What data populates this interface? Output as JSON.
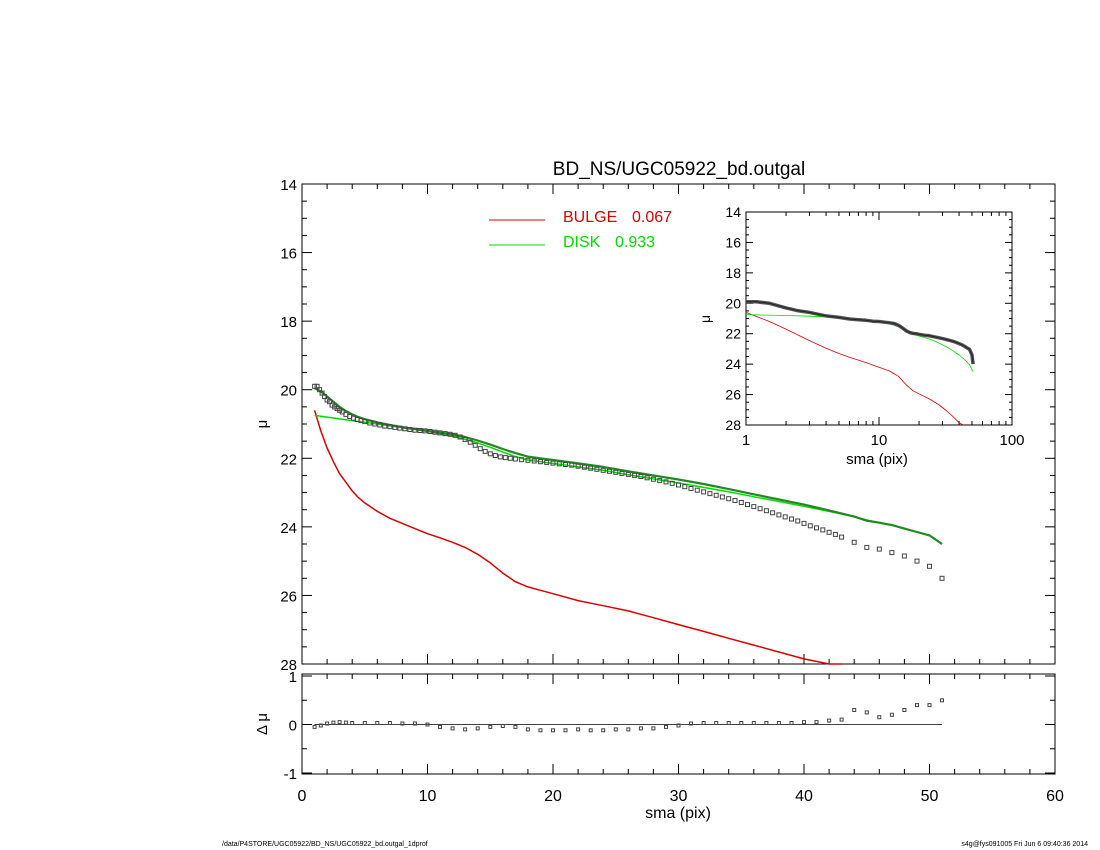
{
  "title": "BD_NS/UGC05922_bd.outgal",
  "footer": {
    "path": "/data/P4STORE/UGC05922/BD_NS/UGC05922_bd.outgal_1dprof",
    "stamp": "s4g@fys091005  Fri Jun  6 09:40:36 2014"
  },
  "colors": {
    "bulge": "#dd0000",
    "disk": "#00dd00",
    "data": "#444444",
    "axis": "#000000"
  },
  "chart_data": [
    {
      "id": "main",
      "type": "scatter",
      "xlabel": "",
      "ylabel": "μ",
      "xlim": [
        0,
        60
      ],
      "ylim": [
        28,
        14
      ],
      "yticks": [
        "14",
        "16",
        "18",
        "20",
        "22",
        "24",
        "26",
        "28"
      ],
      "legend": {
        "placement": "top-center",
        "entries": [
          {
            "name": "BULGE",
            "value": "0.067",
            "color": "#dd0000"
          },
          {
            "name": "DISK",
            "value": "0.933",
            "color": "#00dd00"
          }
        ]
      },
      "series": [
        {
          "name": "data",
          "marker": "square",
          "x": [
            1.0,
            1.2,
            1.4,
            1.6,
            1.8,
            2.0,
            2.2,
            2.4,
            2.6,
            2.8,
            3.0,
            3.2,
            3.5,
            3.8,
            4.1,
            4.4,
            4.7,
            5.0,
            5.4,
            5.8,
            6.2,
            6.6,
            7.0,
            7.4,
            7.8,
            8.2,
            8.6,
            9.0,
            9.4,
            9.8,
            10.2,
            10.6,
            11.0,
            11.4,
            11.8,
            12.2,
            12.6,
            13.0,
            13.4,
            13.8,
            14.2,
            14.6,
            15.0,
            15.4,
            15.8,
            16.2,
            16.6,
            17.0,
            17.5,
            18.0,
            18.5,
            19.0,
            19.5,
            20.0,
            20.5,
            21.0,
            21.5,
            22.0,
            22.5,
            23.0,
            23.5,
            24.0,
            24.5,
            25.0,
            25.5,
            26.0,
            26.5,
            27.0,
            27.5,
            28.0,
            28.5,
            29.0,
            29.5,
            30.0,
            30.5,
            31.0,
            31.5,
            32.0,
            32.5,
            33.0,
            33.5,
            34.0,
            34.5,
            35.0,
            35.5,
            36.0,
            36.5,
            37.0,
            37.5,
            38.0,
            38.5,
            39.0,
            39.5,
            40.0,
            40.5,
            41.0,
            41.5,
            42.0,
            42.5,
            43.0,
            44.0,
            45.0,
            46.0,
            47.0,
            48.0,
            49.0,
            50.0,
            51.0
          ],
          "y": [
            19.9,
            19.9,
            20.0,
            20.1,
            20.2,
            20.3,
            20.35,
            20.45,
            20.5,
            20.55,
            20.6,
            20.65,
            20.72,
            20.78,
            20.83,
            20.87,
            20.9,
            20.93,
            20.97,
            21.0,
            21.03,
            21.06,
            21.08,
            21.1,
            21.12,
            21.14,
            21.16,
            21.18,
            21.19,
            21.2,
            21.22,
            21.24,
            21.26,
            21.28,
            21.3,
            21.33,
            21.38,
            21.45,
            21.53,
            21.62,
            21.72,
            21.8,
            21.87,
            21.92,
            21.96,
            21.98,
            22.0,
            22.02,
            22.04,
            22.06,
            22.08,
            22.1,
            22.12,
            22.14,
            22.16,
            22.18,
            22.2,
            22.23,
            22.26,
            22.29,
            22.32,
            22.35,
            22.38,
            22.41,
            22.44,
            22.47,
            22.5,
            22.53,
            22.57,
            22.61,
            22.65,
            22.69,
            22.73,
            22.78,
            22.83,
            22.88,
            22.93,
            22.98,
            23.03,
            23.08,
            23.13,
            23.18,
            23.23,
            23.29,
            23.35,
            23.41,
            23.47,
            23.53,
            23.59,
            23.65,
            23.71,
            23.77,
            23.83,
            23.9,
            23.97,
            24.03,
            24.09,
            24.16,
            24.22,
            24.3,
            24.45,
            24.6,
            24.65,
            24.75,
            24.85,
            25.0,
            25.15,
            25.5
          ]
        },
        {
          "name": "model",
          "x": [
            1.0,
            1.5,
            2.0,
            2.5,
            3.0,
            3.5,
            4.0,
            4.5,
            5.0,
            6.0,
            7.0,
            8.0,
            9.0,
            10.0,
            11.0,
            12.0,
            13.0,
            14.0,
            15.0,
            16.0,
            17.0,
            18.0,
            19.0,
            20.0,
            22.0,
            24.0,
            26.0,
            28.0,
            30.0,
            32.0,
            34.0,
            36.0,
            38.0,
            40.0,
            42.0,
            44.0,
            45.0,
            46.0,
            47.0,
            48.0,
            49.0,
            50.0,
            51.0
          ],
          "y": [
            19.95,
            20.05,
            20.2,
            20.35,
            20.5,
            20.62,
            20.72,
            20.8,
            20.86,
            20.95,
            21.03,
            21.1,
            21.15,
            21.2,
            21.25,
            21.3,
            21.38,
            21.48,
            21.6,
            21.73,
            21.85,
            21.95,
            22.0,
            22.05,
            22.15,
            22.25,
            22.38,
            22.5,
            22.62,
            22.75,
            22.9,
            23.05,
            23.2,
            23.35,
            23.52,
            23.7,
            23.82,
            23.88,
            23.95,
            24.05,
            24.15,
            24.25,
            24.5
          ]
        },
        {
          "name": "BULGE",
          "x": [
            1.0,
            1.5,
            2.0,
            2.5,
            3.0,
            3.5,
            4.0,
            4.5,
            5.0,
            6.0,
            7.0,
            8.0,
            9.0,
            10.0,
            11.0,
            12.0,
            13.0,
            14.0,
            15.0,
            16.0,
            17.0,
            18.0,
            19.0,
            20.0,
            22.0,
            24.0,
            26.0,
            28.0,
            30.0,
            32.0,
            34.0,
            36.0,
            38.0,
            40.0,
            42.0,
            43.0
          ],
          "y": [
            20.6,
            21.2,
            21.7,
            22.1,
            22.45,
            22.7,
            22.95,
            23.15,
            23.3,
            23.55,
            23.75,
            23.9,
            24.05,
            24.2,
            24.32,
            24.45,
            24.6,
            24.8,
            25.05,
            25.35,
            25.6,
            25.75,
            25.85,
            25.95,
            26.15,
            26.3,
            26.45,
            26.65,
            26.85,
            27.05,
            27.25,
            27.45,
            27.65,
            27.85,
            28.0,
            28.0
          ]
        },
        {
          "name": "DISK",
          "x": [
            1.0,
            2.0,
            3.0,
            4.0,
            5.0,
            6.0,
            7.0,
            8.0,
            9.0,
            10.0,
            11.0,
            12.0,
            13.0,
            14.0,
            15.0,
            16.0,
            17.0,
            18.0,
            19.0,
            20.0,
            22.0,
            24.0,
            26.0,
            28.0,
            30.0,
            32.0,
            34.0,
            36.0,
            38.0,
            40.0,
            42.0,
            44.0,
            45.0,
            46.0,
            47.0,
            48.0,
            49.0,
            50.0,
            51.0
          ],
          "y": [
            20.75,
            20.8,
            20.85,
            20.9,
            20.95,
            21.0,
            21.05,
            21.1,
            21.15,
            21.22,
            21.28,
            21.35,
            21.45,
            21.55,
            21.68,
            21.82,
            21.95,
            22.05,
            22.1,
            22.15,
            22.25,
            22.35,
            22.48,
            22.6,
            22.72,
            22.85,
            22.98,
            23.12,
            23.26,
            23.4,
            23.55,
            23.7,
            23.8,
            23.88,
            23.95,
            24.05,
            24.15,
            24.25,
            24.5
          ]
        }
      ]
    },
    {
      "id": "inset",
      "type": "line",
      "xscale": "log",
      "xlabel": "sma (pix)",
      "ylabel": "μ",
      "xlim": [
        1,
        100
      ],
      "ylim": [
        28,
        14
      ],
      "xticks": [
        "1",
        "10",
        "100"
      ],
      "yticks": [
        "14",
        "16",
        "18",
        "20",
        "22",
        "24",
        "26",
        "28"
      ],
      "series": [
        {
          "name": "data",
          "x": [
            1.0,
            1.2,
            1.5,
            2.0,
            2.5,
            3.0,
            4.0,
            5.0,
            6.0,
            7.0,
            8.0,
            9.0,
            10.0,
            11.0,
            12.0,
            13.0,
            14.0,
            15.0,
            16.0,
            17.0,
            18.0,
            19.0,
            20.0,
            22.0,
            24.0,
            26.0,
            28.0,
            30.0,
            32.0,
            34.0,
            36.0,
            38.0,
            40.0,
            42.0,
            44.0,
            46.0,
            48.0,
            50.0,
            51.0
          ],
          "y": [
            19.9,
            19.9,
            20.0,
            20.3,
            20.5,
            20.6,
            20.83,
            20.93,
            21.03,
            21.08,
            21.12,
            21.18,
            21.2,
            21.24,
            21.28,
            21.33,
            21.45,
            21.62,
            21.8,
            21.92,
            21.98,
            22.0,
            22.04,
            22.1,
            22.14,
            22.2,
            22.26,
            22.32,
            22.38,
            22.44,
            22.5,
            22.57,
            22.65,
            22.73,
            22.83,
            22.93,
            23.03,
            23.4,
            24.0
          ]
        },
        {
          "name": "BULGE",
          "x": [
            1.0,
            1.5,
            2.0,
            3.0,
            4.0,
            5.0,
            6.0,
            8.0,
            10.0,
            12.0,
            14.0,
            16.0,
            18.0,
            20.0,
            24.0,
            28.0,
            32.0,
            36.0,
            40.0,
            43.0
          ],
          "y": [
            20.6,
            21.2,
            21.7,
            22.45,
            22.95,
            23.3,
            23.55,
            23.9,
            24.2,
            24.45,
            24.8,
            25.35,
            25.75,
            25.95,
            26.3,
            26.65,
            27.05,
            27.45,
            27.85,
            28.0
          ]
        },
        {
          "name": "DISK",
          "x": [
            1.0,
            2.0,
            3.0,
            5.0,
            8.0,
            10.0,
            12.0,
            14.0,
            16.0,
            18.0,
            20.0,
            24.0,
            28.0,
            32.0,
            36.0,
            40.0,
            44.0,
            48.0,
            51.0
          ],
          "y": [
            20.75,
            20.8,
            20.85,
            20.95,
            21.1,
            21.22,
            21.35,
            21.55,
            21.82,
            22.05,
            22.15,
            22.35,
            22.6,
            22.85,
            23.12,
            23.4,
            23.7,
            24.05,
            24.5
          ]
        }
      ]
    },
    {
      "id": "residual",
      "type": "scatter",
      "xlabel": "sma (pix)",
      "ylabel": "Δ μ",
      "xlim": [
        0,
        60
      ],
      "ylim": [
        -1,
        1
      ],
      "xticks": [
        "0",
        "10",
        "20",
        "30",
        "40",
        "50",
        "60"
      ],
      "yticks": [
        "1",
        "0",
        "-1"
      ],
      "series": [
        {
          "name": "residual",
          "marker": "square",
          "x": [
            1.0,
            1.5,
            2.0,
            2.5,
            3.0,
            3.5,
            4.0,
            5.0,
            6.0,
            7.0,
            8.0,
            9.0,
            10.0,
            11.0,
            12.0,
            13.0,
            14.0,
            15.0,
            16.0,
            17.0,
            18.0,
            19.0,
            20.0,
            21.0,
            22.0,
            23.0,
            24.0,
            25.0,
            26.0,
            27.0,
            28.0,
            29.0,
            30.0,
            31.0,
            32.0,
            33.0,
            34.0,
            35.0,
            36.0,
            37.0,
            38.0,
            39.0,
            40.0,
            41.0,
            42.0,
            43.0,
            44.0,
            45.0,
            46.0,
            47.0,
            48.0,
            49.0,
            50.0,
            51.0
          ],
          "y": [
            -0.05,
            -0.02,
            0.02,
            0.04,
            0.05,
            0.04,
            0.03,
            0.03,
            0.03,
            0.03,
            0.02,
            0.02,
            0.0,
            -0.05,
            -0.08,
            -0.1,
            -0.08,
            -0.05,
            -0.03,
            -0.05,
            -0.1,
            -0.12,
            -0.12,
            -0.12,
            -0.1,
            -0.12,
            -0.12,
            -0.1,
            -0.1,
            -0.08,
            -0.08,
            -0.05,
            -0.02,
            0.02,
            0.03,
            0.03,
            0.03,
            0.03,
            0.03,
            0.03,
            0.03,
            0.03,
            0.05,
            0.05,
            0.08,
            0.1,
            0.3,
            0.25,
            0.15,
            0.2,
            0.3,
            0.4,
            0.4,
            0.5
          ]
        }
      ]
    }
  ]
}
